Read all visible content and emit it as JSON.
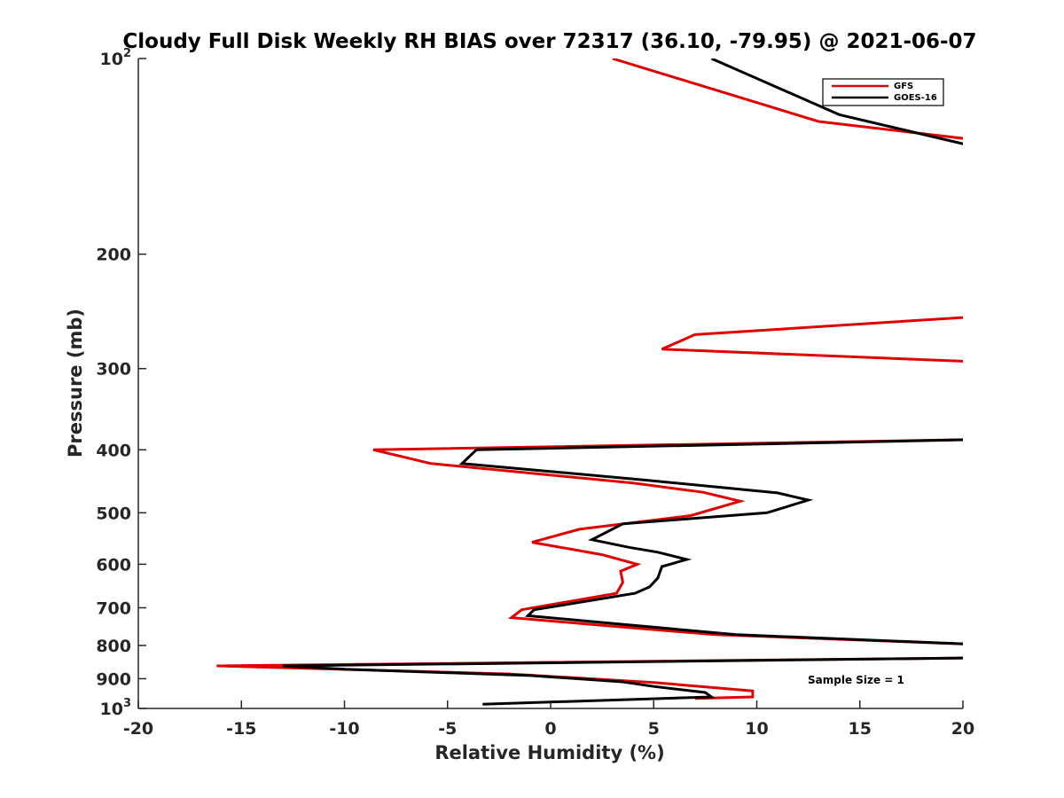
{
  "chart_data": {
    "type": "line",
    "title": "Cloudy Full Disk Weekly RH BIAS over 72317 (36.10, -79.95) @ 2021-06-07",
    "xlabel": "Relative Humidity (%)",
    "ylabel": "Pressure (mb)",
    "xlim": [
      -20,
      20
    ],
    "ylim": [
      100,
      1000
    ],
    "yscale": "log",
    "y_reversed": true,
    "grid": false,
    "legend_placement": "top-right",
    "x_ticks": [
      -20,
      -15,
      -10,
      -5,
      0,
      5,
      10,
      15,
      20
    ],
    "x_tick_labels": [
      "-20",
      "-15",
      "-10",
      "-5",
      "0",
      "5",
      "10",
      "15",
      "20"
    ],
    "y_ticks": [
      100,
      200,
      300,
      400,
      500,
      600,
      700,
      800,
      900,
      1000
    ],
    "y_tick_labels": [
      {
        "base": "10",
        "exp": "2"
      },
      {
        "base": "200",
        "exp": ""
      },
      {
        "base": "300",
        "exp": ""
      },
      {
        "base": "400",
        "exp": ""
      },
      {
        "base": "500",
        "exp": ""
      },
      {
        "base": "600",
        "exp": ""
      },
      {
        "base": "700",
        "exp": ""
      },
      {
        "base": "800",
        "exp": ""
      },
      {
        "base": "900",
        "exp": ""
      },
      {
        "base": "10",
        "exp": "3"
      }
    ],
    "series": [
      {
        "name": "GFS",
        "color": "#e00000",
        "points": [
          [
            3.0,
            100
          ],
          [
            13.0,
            125
          ],
          [
            22.0,
            135
          ],
          [
            22.0,
            248
          ],
          [
            7.0,
            266
          ],
          [
            5.4,
            280
          ],
          [
            22.0,
            294
          ],
          [
            22.0,
            385
          ],
          [
            -8.6,
            400
          ],
          [
            -5.8,
            420
          ],
          [
            4.0,
            450
          ],
          [
            7.4,
            465
          ],
          [
            9.2,
            480
          ],
          [
            6.8,
            505
          ],
          [
            1.4,
            530
          ],
          [
            -0.9,
            555
          ],
          [
            2.5,
            580
          ],
          [
            4.2,
            600
          ],
          [
            3.4,
            615
          ],
          [
            3.5,
            640
          ],
          [
            3.2,
            665
          ],
          [
            -1.4,
            705
          ],
          [
            -1.9,
            725
          ],
          [
            2.5,
            745
          ],
          [
            8.0,
            770
          ],
          [
            22.0,
            800
          ],
          [
            22.0,
            835
          ],
          [
            -16.2,
            860
          ],
          [
            -2.0,
            885
          ],
          [
            5.0,
            912
          ],
          [
            9.8,
            940
          ],
          [
            9.8,
            960
          ],
          [
            7.0,
            965
          ]
        ]
      },
      {
        "name": "GOES-16",
        "color": "#000000",
        "points": [
          [
            7.8,
            100
          ],
          [
            14.0,
            122
          ],
          [
            22.0,
            140
          ],
          [
            22.0,
            385
          ],
          [
            -3.6,
            400
          ],
          [
            -4.3,
            420
          ],
          [
            4.5,
            445
          ],
          [
            11.0,
            466
          ],
          [
            12.5,
            478
          ],
          [
            10.5,
            500
          ],
          [
            3.5,
            520
          ],
          [
            2.0,
            550
          ],
          [
            3.8,
            565
          ],
          [
            5.2,
            575
          ],
          [
            6.6,
            590
          ],
          [
            5.4,
            605
          ],
          [
            5.2,
            630
          ],
          [
            4.8,
            650
          ],
          [
            4.1,
            665
          ],
          [
            -0.8,
            705
          ],
          [
            -1.1,
            720
          ],
          [
            3.0,
            740
          ],
          [
            9.0,
            770
          ],
          [
            22.0,
            800
          ],
          [
            22.0,
            835
          ],
          [
            -13.0,
            860
          ],
          [
            -10.0,
            870
          ],
          [
            -1.0,
            890
          ],
          [
            3.5,
            910
          ],
          [
            5.0,
            925
          ],
          [
            7.5,
            945
          ],
          [
            7.8,
            960
          ],
          [
            -3.3,
            985
          ]
        ]
      }
    ],
    "annotation": "Sample Size = 1"
  }
}
